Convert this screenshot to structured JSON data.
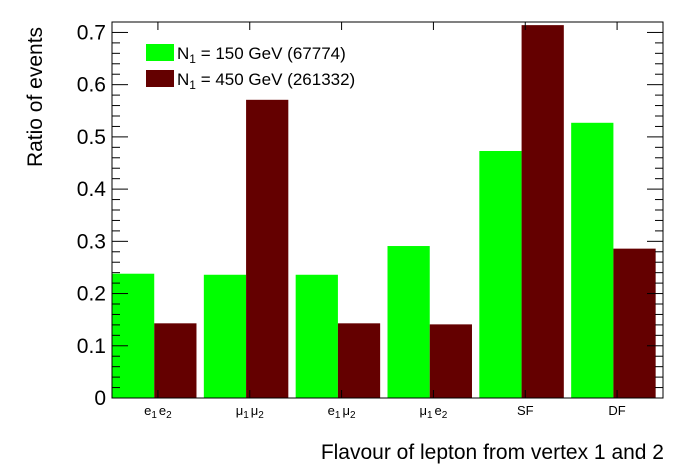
{
  "chart_data": {
    "type": "bar",
    "xlabel": "Flavour of lepton from vertex 1 and 2",
    "ylabel": "Ratio of events",
    "ylim": [
      0,
      0.72
    ],
    "yticks": [
      "0",
      "0.1",
      "0.2",
      "0.3",
      "0.4",
      "0.5",
      "0.6",
      "0.7"
    ],
    "categories": [
      {
        "main1": "e",
        "sub1": "1",
        "main2": "e",
        "sub2": "2"
      },
      {
        "main1": "μ",
        "sub1": "1",
        "main2": "μ",
        "sub2": "2"
      },
      {
        "main1": "e",
        "sub1": "1",
        "main2": "μ",
        "sub2": "2"
      },
      {
        "main1": "μ",
        "sub1": "1",
        "main2": "e",
        "sub2": "2"
      },
      {
        "main1": "SF",
        "sub1": "",
        "main2": "",
        "sub2": ""
      },
      {
        "main1": "DF",
        "sub1": "",
        "main2": "",
        "sub2": ""
      }
    ],
    "series": [
      {
        "name": "N1 = 150 GeV (67774)",
        "legend_main": "N",
        "legend_sub": "1",
        "legend_rest": " = 150 GeV (67774)",
        "color": "#00ff00",
        "values": [
          0.238,
          0.236,
          0.236,
          0.291,
          0.473,
          0.527
        ]
      },
      {
        "name": "N1 = 450 GeV (261332)",
        "legend_main": "N",
        "legend_sub": "1",
        "legend_rest": " = 450 GeV (261332)",
        "color": "#640000",
        "values": [
          0.143,
          0.571,
          0.143,
          0.141,
          0.714,
          0.286
        ]
      }
    ],
    "legend_position": "top-left",
    "grid": false
  }
}
